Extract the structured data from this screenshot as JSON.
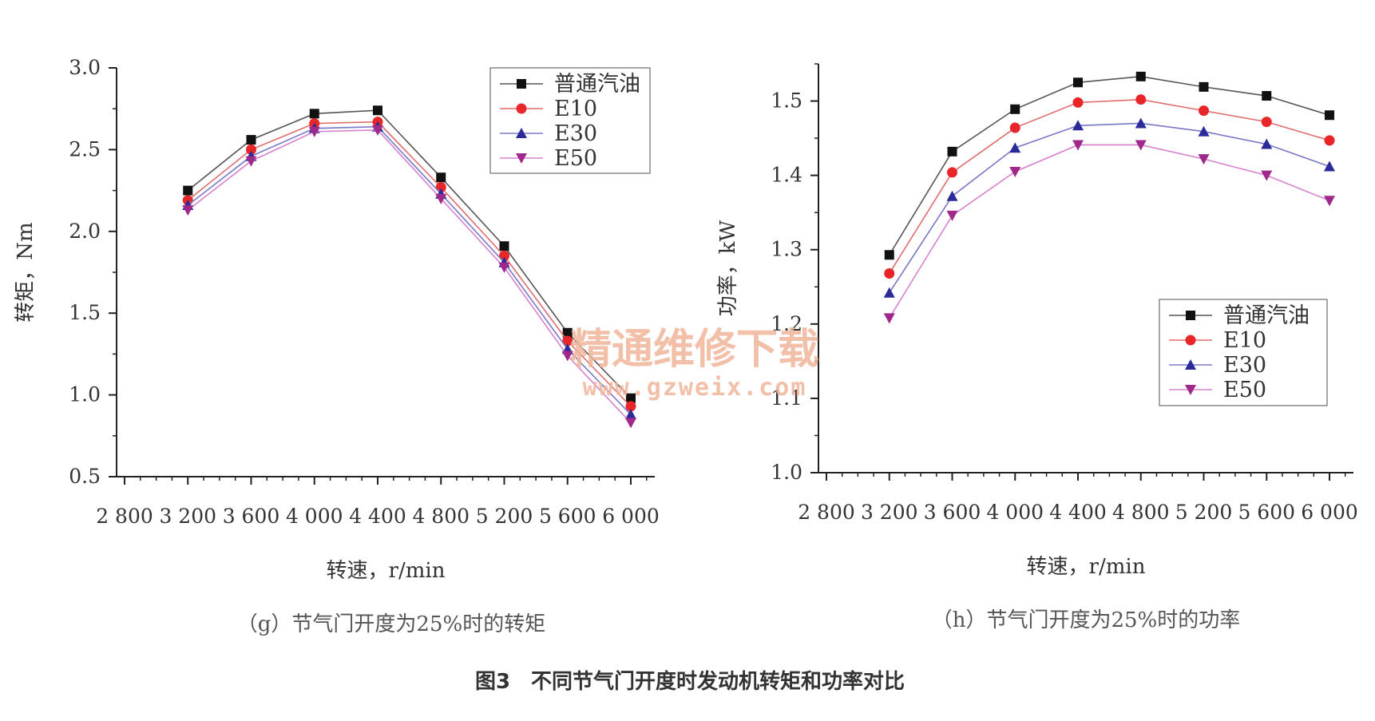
{
  "figure_caption": "图3　不同节气门开度时发动机转矩和功率对比",
  "watermark": {
    "text": "精通维修下载",
    "url": "www.gzweix.com"
  },
  "chart_data": [
    {
      "type": "line",
      "panel_caption": "（g）节气门开度为25%时的转矩",
      "xlabel": "转速，r/min",
      "ylabel": "转矩，Nm",
      "xlim": [
        2800,
        6000
      ],
      "ylim": [
        0.5,
        3.0
      ],
      "x_ticks": [
        2800,
        3200,
        3600,
        4000,
        4400,
        4800,
        5200,
        5600,
        6000
      ],
      "x_tick_labels": [
        "2 800",
        "3 200",
        "3 600",
        "4 000",
        "4 400",
        "4 800",
        "5 200",
        "5 600",
        "6 000"
      ],
      "y_ticks": [
        0.5,
        1.0,
        1.5,
        2.0,
        2.5,
        3.0
      ],
      "y_tick_labels": [
        "0.5",
        "1.0",
        "1.5",
        "2.0",
        "2.5",
        "3.0"
      ],
      "legend_position": "top-right",
      "x": [
        3200,
        3600,
        4000,
        4400,
        4800,
        5200,
        5600,
        6000
      ],
      "series": [
        {
          "name": "普通汽油",
          "color": "#555555",
          "marker": "square",
          "marker_color": "#111111",
          "values": [
            2.25,
            2.56,
            2.72,
            2.74,
            2.33,
            1.91,
            1.38,
            0.98
          ]
        },
        {
          "name": "E10",
          "color": "#e06c6c",
          "marker": "circle",
          "marker_color": "#e8262a",
          "values": [
            2.19,
            2.5,
            2.66,
            2.67,
            2.27,
            1.85,
            1.33,
            0.93
          ]
        },
        {
          "name": "E30",
          "color": "#7878c8",
          "marker": "triangle-up",
          "marker_color": "#2a2a9a",
          "values": [
            2.16,
            2.46,
            2.63,
            2.64,
            2.23,
            1.81,
            1.28,
            0.88
          ]
        },
        {
          "name": "E50",
          "color": "#d880d0",
          "marker": "triangle-down",
          "marker_color": "#a0288a",
          "values": [
            2.13,
            2.43,
            2.61,
            2.62,
            2.2,
            1.78,
            1.24,
            0.83
          ]
        }
      ]
    },
    {
      "type": "line",
      "panel_caption": "（h）节气门开度为25%时的功率",
      "xlabel": "转速，r/min",
      "ylabel": "功率，kW",
      "xlim": [
        2800,
        6000
      ],
      "ylim": [
        1.0,
        1.55
      ],
      "x_ticks": [
        2800,
        3200,
        3600,
        4000,
        4400,
        4800,
        5200,
        5600,
        6000
      ],
      "x_tick_labels": [
        "2 800",
        "3 200",
        "3 600",
        "4 000",
        "4 400",
        "4 800",
        "5 200",
        "5 600",
        "6 000"
      ],
      "y_ticks": [
        1.0,
        1.1,
        1.2,
        1.3,
        1.4,
        1.5
      ],
      "y_tick_labels": [
        "1.0",
        "1.1",
        "1.2",
        "1.3",
        "1.4",
        "1.5"
      ],
      "legend_position": "center-right",
      "x": [
        3200,
        3600,
        4000,
        4400,
        4800,
        5200,
        5600,
        6000
      ],
      "series": [
        {
          "name": "普通汽油",
          "color": "#555555",
          "marker": "square",
          "marker_color": "#111111",
          "values": [
            1.293,
            1.432,
            1.489,
            1.525,
            1.533,
            1.519,
            1.507,
            1.481
          ]
        },
        {
          "name": "E10",
          "color": "#e06c6c",
          "marker": "circle",
          "marker_color": "#e8262a",
          "values": [
            1.268,
            1.404,
            1.464,
            1.498,
            1.502,
            1.487,
            1.472,
            1.447
          ]
        },
        {
          "name": "E30",
          "color": "#7878c8",
          "marker": "triangle-up",
          "marker_color": "#2a2a9a",
          "values": [
            1.242,
            1.372,
            1.437,
            1.467,
            1.47,
            1.459,
            1.442,
            1.412
          ]
        },
        {
          "name": "E50",
          "color": "#d880d0",
          "marker": "triangle-down",
          "marker_color": "#a0288a",
          "values": [
            1.208,
            1.346,
            1.405,
            1.441,
            1.441,
            1.422,
            1.4,
            1.366
          ]
        }
      ]
    }
  ]
}
